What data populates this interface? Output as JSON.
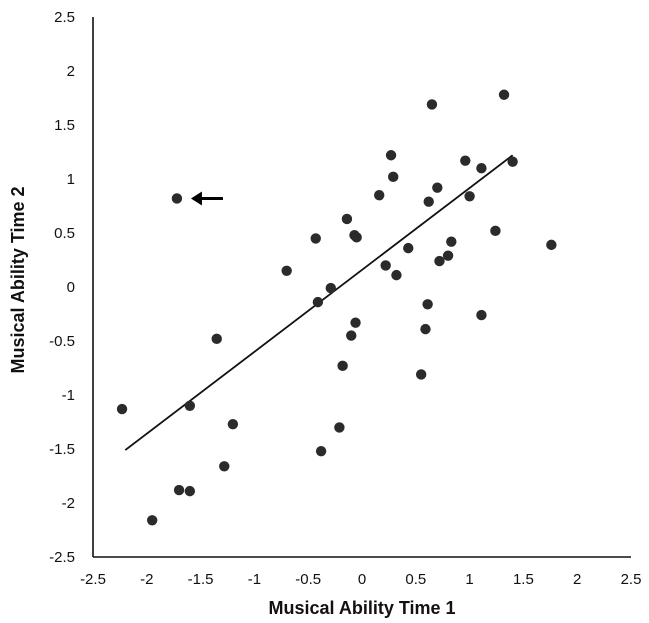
{
  "chart_data": {
    "type": "scatter",
    "title": "",
    "xlabel": "Musical Ability Time 1",
    "ylabel": "Musical Ability Time 2",
    "xlim": [
      -2.5,
      2.5
    ],
    "ylim": [
      -2.5,
      2.5
    ],
    "x_ticks": [
      "-2.5",
      "-2",
      "-1.5",
      "-1",
      "-0.5",
      "0",
      "0.5",
      "1",
      "1.5",
      "2",
      "2.5"
    ],
    "y_ticks": [
      "2.5",
      "2",
      "1.5",
      "1",
      "0.5",
      "0",
      "-0.5",
      "-1",
      "-1.5",
      "-2",
      "-2.5"
    ],
    "grid": false,
    "legend": "none",
    "points": [
      {
        "x": -2.23,
        "y": -1.13
      },
      {
        "x": -1.95,
        "y": -2.16
      },
      {
        "x": -1.7,
        "y": -1.88
      },
      {
        "x": -1.6,
        "y": -1.89
      },
      {
        "x": -1.6,
        "y": -1.1
      },
      {
        "x": -1.72,
        "y": 0.82
      },
      {
        "x": -1.35,
        "y": -0.48
      },
      {
        "x": -1.28,
        "y": -1.66
      },
      {
        "x": -1.2,
        "y": -1.27
      },
      {
        "x": -0.7,
        "y": 0.15
      },
      {
        "x": -0.43,
        "y": 0.45
      },
      {
        "x": -0.41,
        "y": -0.14
      },
      {
        "x": -0.38,
        "y": -1.52
      },
      {
        "x": -0.29,
        "y": -0.01
      },
      {
        "x": -0.21,
        "y": -1.3
      },
      {
        "x": -0.18,
        "y": -0.73
      },
      {
        "x": -0.14,
        "y": 0.63
      },
      {
        "x": -0.1,
        "y": -0.45
      },
      {
        "x": -0.07,
        "y": 0.48
      },
      {
        "x": -0.05,
        "y": 0.46
      },
      {
        "x": -0.06,
        "y": -0.33
      },
      {
        "x": 0.16,
        "y": 0.85
      },
      {
        "x": 0.22,
        "y": 0.2
      },
      {
        "x": 0.27,
        "y": 1.22
      },
      {
        "x": 0.29,
        "y": 1.02
      },
      {
        "x": 0.32,
        "y": 0.11
      },
      {
        "x": 0.43,
        "y": 0.36
      },
      {
        "x": 0.55,
        "y": -0.81
      },
      {
        "x": 0.59,
        "y": -0.39
      },
      {
        "x": 0.61,
        "y": -0.16
      },
      {
        "x": 0.62,
        "y": 0.79
      },
      {
        "x": 0.65,
        "y": 1.69
      },
      {
        "x": 0.7,
        "y": 0.92
      },
      {
        "x": 0.72,
        "y": 0.24
      },
      {
        "x": 0.8,
        "y": 0.29
      },
      {
        "x": 0.83,
        "y": 0.42
      },
      {
        "x": 0.96,
        "y": 1.17
      },
      {
        "x": 1.0,
        "y": 0.84
      },
      {
        "x": 1.11,
        "y": 1.1
      },
      {
        "x": 1.11,
        "y": -0.26
      },
      {
        "x": 1.24,
        "y": 0.52
      },
      {
        "x": 1.32,
        "y": 1.78
      },
      {
        "x": 1.4,
        "y": 1.16
      },
      {
        "x": 1.76,
        "y": 0.39
      }
    ],
    "trendline": {
      "x": [
        -2.2,
        1.4
      ],
      "y": [
        -1.51,
        1.22
      ]
    },
    "annotations": [
      {
        "type": "arrow",
        "direction": "left",
        "points_to": {
          "x": -1.72,
          "y": 0.82
        }
      }
    ],
    "colors": {
      "points": "#2b2b2b",
      "line": "#111111",
      "axes": "#111111"
    }
  }
}
